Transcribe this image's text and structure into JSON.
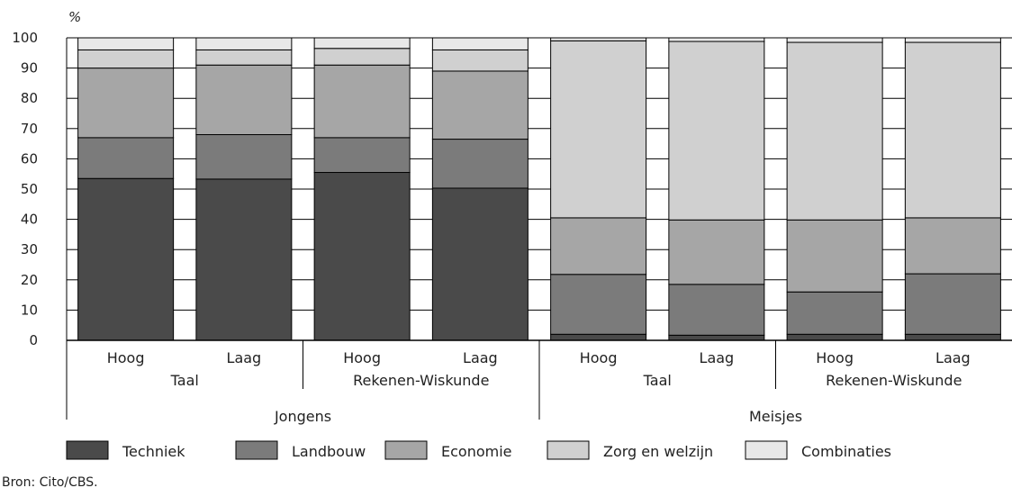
{
  "chart_data": {
    "type": "bar",
    "stacked": true,
    "normalized": true,
    "ylabel": "%",
    "ylim": [
      0,
      100
    ],
    "yticks": [
      0,
      10,
      20,
      30,
      40,
      50,
      60,
      70,
      80,
      90,
      100
    ],
    "grid": false,
    "legend_position": "bottom",
    "categories": [
      "Hoog",
      "Laag",
      "Hoog",
      "Laag",
      "Hoog",
      "Laag",
      "Hoog",
      "Laag"
    ],
    "subject_groups": [
      {
        "label": "Taal",
        "span": [
          0,
          1
        ]
      },
      {
        "label": "Rekenen-Wiskunde",
        "span": [
          2,
          3
        ]
      },
      {
        "label": "Taal",
        "span": [
          4,
          5
        ]
      },
      {
        "label": "Rekenen-Wiskunde",
        "span": [
          6,
          7
        ]
      }
    ],
    "gender_groups": [
      {
        "label": "Jongens",
        "span": [
          0,
          3
        ]
      },
      {
        "label": "Meisjes",
        "span": [
          4,
          7
        ]
      }
    ],
    "series": [
      {
        "name": "Techniek",
        "color": "#4a4a4a",
        "values": [
          53.5,
          53.3,
          55.5,
          50.3,
          2.0,
          1.7,
          2.0,
          2.0
        ]
      },
      {
        "name": "Landbouw",
        "color": "#7b7b7b",
        "values": [
          13.5,
          14.7,
          11.5,
          16.2,
          19.8,
          16.8,
          14.0,
          20.0
        ]
      },
      {
        "name": "Economie",
        "color": "#a6a6a6",
        "values": [
          23.0,
          23.0,
          24.0,
          22.5,
          18.7,
          21.3,
          23.8,
          18.5
        ]
      },
      {
        "name": "Zorg en welzijn",
        "color": "#d0d0d0",
        "values": [
          6.0,
          5.0,
          5.5,
          7.0,
          58.5,
          59.0,
          58.7,
          58.0
        ]
      },
      {
        "name": "Combinaties",
        "color": "#e8e8e8",
        "values": [
          4.0,
          4.0,
          3.5,
          4.0,
          1.0,
          1.2,
          1.5,
          1.5
        ]
      }
    ]
  },
  "source_text": "Bron: Cito/CBS."
}
